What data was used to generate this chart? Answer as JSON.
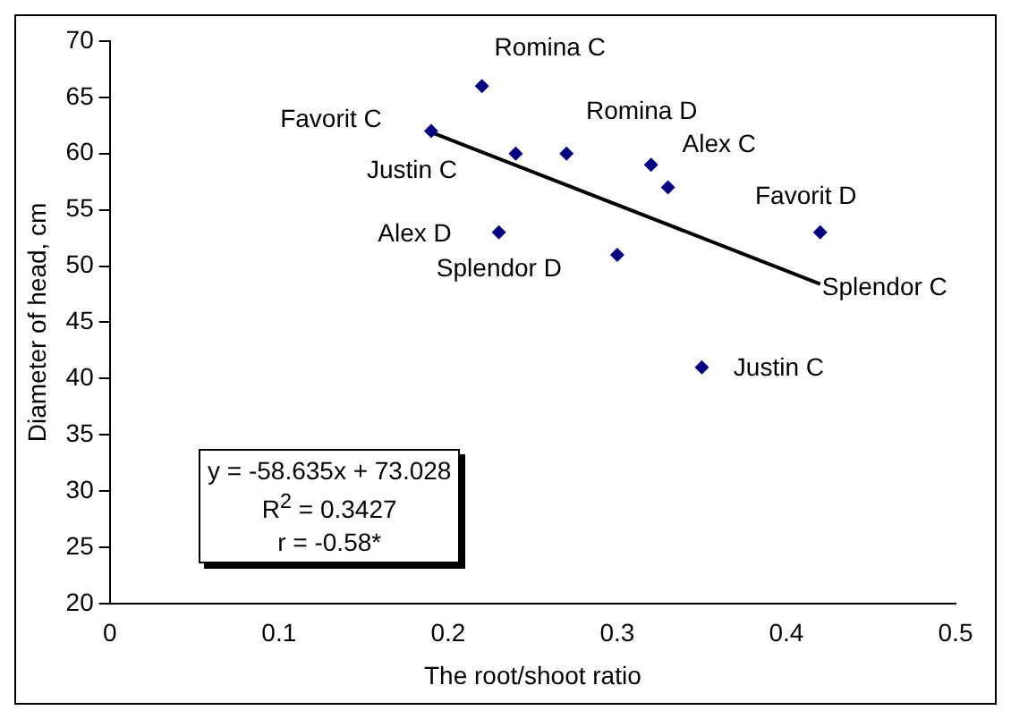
{
  "chart_data": {
    "type": "scatter",
    "xlabel": "The root/shoot ratio",
    "ylabel": "Diameter of head, cm",
    "xlim": [
      0,
      0.5
    ],
    "xticks": [
      0,
      0.1,
      0.2,
      0.3,
      0.4,
      0.5
    ],
    "ylim": [
      20,
      70
    ],
    "yticks": [
      20,
      25,
      30,
      35,
      40,
      45,
      50,
      55,
      60,
      65,
      70
    ],
    "grid": false,
    "legend": false,
    "marker": "diamond",
    "series": [
      {
        "type": "scatter",
        "color": "#000080",
        "x": [
          0.22,
          0.19,
          0.24,
          0.27,
          0.32,
          0.33,
          0.23,
          0.3,
          0.42,
          0.35
        ],
        "values": [
          66,
          62,
          60,
          60,
          59,
          57,
          53,
          51,
          53,
          41
        ]
      },
      {
        "type": "line",
        "color": "#000000",
        "marker": "none",
        "line_style": "solid",
        "x": [
          0.19,
          0.42
        ],
        "values": [
          61.9,
          48.4
        ]
      }
    ],
    "annotations": [
      {
        "text": "Romina C",
        "x": 0.22,
        "y": 66
      },
      {
        "text": "Favorit C",
        "x": 0.19,
        "y": 62
      },
      {
        "text": "Justin C",
        "x": 0.24,
        "y": 60
      },
      {
        "text": "Romina D",
        "x": 0.27,
        "y": 60
      },
      {
        "text": "Alex C",
        "x": 0.32,
        "y": 59
      },
      {
        "text": "Splendor C",
        "x": 0.42,
        "y": 48
      },
      {
        "text": "Alex D",
        "x": 0.23,
        "y": 53
      },
      {
        "text": "Splendor D",
        "x": 0.3,
        "y": 51
      },
      {
        "text": "Favorit D",
        "x": 0.42,
        "y": 53
      },
      {
        "text": "Justin C",
        "x": 0.35,
        "y": 41
      },
      "y = -58.635x + 73.028",
      "R$^{2}$ = 0.3427",
      "r = -0.58*"
    ]
  }
}
